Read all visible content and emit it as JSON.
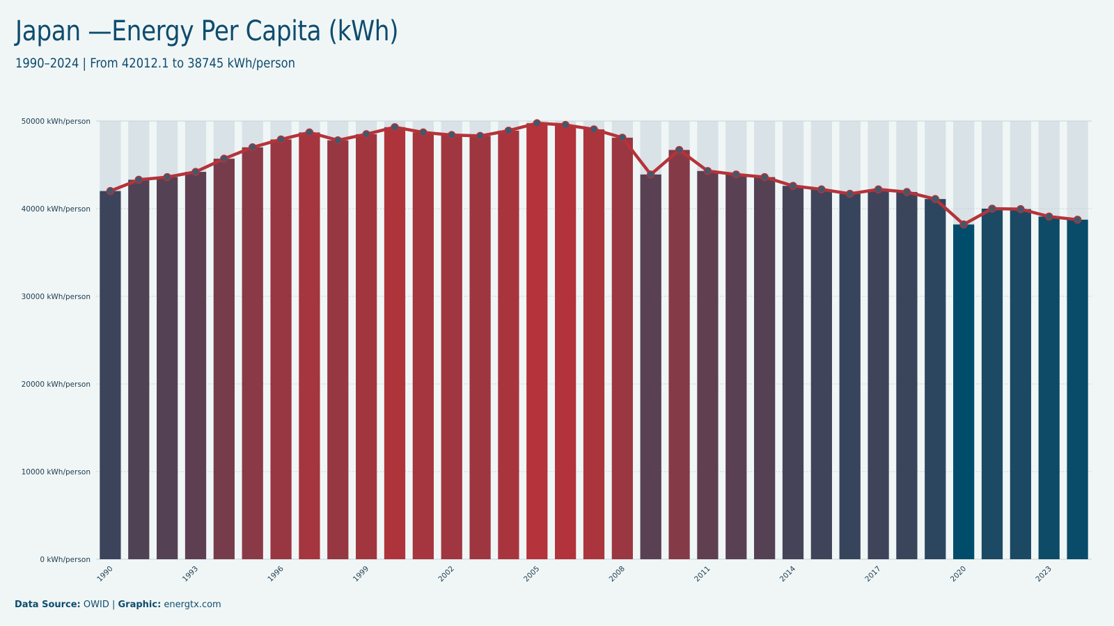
{
  "title": "Japan —Energy Per Capita (kWh)",
  "subtitle": "1990–2024 | From 42012.1 to 38745 kWh/person",
  "footer": {
    "source_label": "Data Source:",
    "source_value": "OWID |",
    "graphic_label": "Graphic:",
    "graphic_value": "energtx.com"
  },
  "colors": {
    "high": "#b5333a",
    "low": "#004d6b",
    "line": "#b5333a",
    "marker": "#3d5a6e",
    "band": "#d9e2e6",
    "text": "#0f4c6e"
  },
  "chart_data": {
    "type": "bar",
    "categories": [
      "1990",
      "1991",
      "1992",
      "1993",
      "1994",
      "1995",
      "1996",
      "1997",
      "1998",
      "1999",
      "2000",
      "2001",
      "2002",
      "2003",
      "2004",
      "2005",
      "2006",
      "2007",
      "2008",
      "2009",
      "2010",
      "2011",
      "2012",
      "2013",
      "2014",
      "2015",
      "2016",
      "2017",
      "2018",
      "2019",
      "2020",
      "2021",
      "2022",
      "2023",
      "2024"
    ],
    "values": [
      42012.1,
      43300,
      43600,
      44200,
      45700,
      47000,
      47900,
      48700,
      47800,
      48500,
      49300,
      48700,
      48400,
      48300,
      48900,
      49750,
      49550,
      49050,
      48100,
      43900,
      46700,
      44300,
      43900,
      43600,
      42600,
      42200,
      41700,
      42200,
      41900,
      41100,
      38200,
      40000,
      39950,
      39100,
      38745
    ],
    "x_tick_labels": [
      "1990",
      "1993",
      "1996",
      "1999",
      "2002",
      "2005",
      "2008",
      "2011",
      "2014",
      "2017",
      "2020",
      "2023"
    ],
    "y_ticks": [
      0,
      10000,
      20000,
      30000,
      40000,
      50000
    ],
    "y_tick_labels": [
      "0 kWh/person",
      "10000 kWh/person",
      "20000 kWh/person",
      "30000 kWh/person",
      "40000 kWh/person",
      "50000 kWh/person"
    ],
    "ylim": [
      0,
      50000
    ],
    "xlabel": "",
    "ylabel": "",
    "grid": true,
    "overlay": "line-with-markers"
  }
}
